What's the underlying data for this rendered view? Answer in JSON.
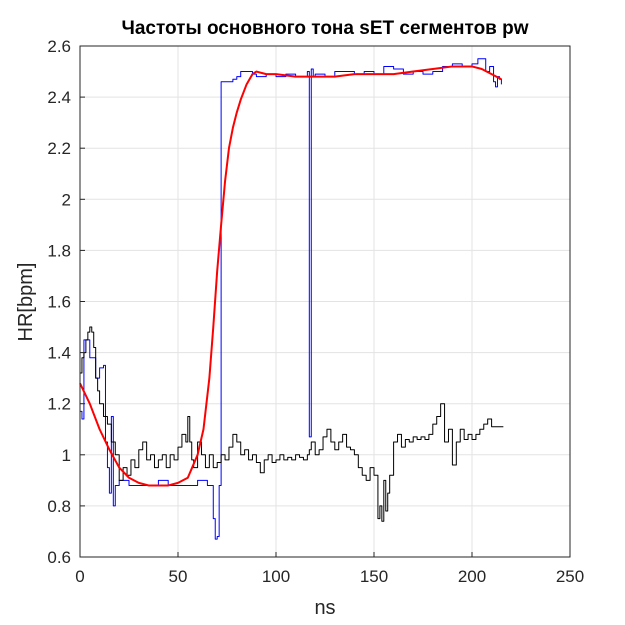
{
  "chart_data": {
    "type": "line",
    "title": "Частоты основного тона sET сегментов pw",
    "xlabel": "ns",
    "ylabel": "HR[bpm]",
    "xlim": [
      0,
      250
    ],
    "ylim": [
      0.6,
      2.6
    ],
    "xticks": [
      "0",
      "50",
      "100",
      "150",
      "200",
      "250"
    ],
    "yticks": [
      "0.6",
      "0.8",
      "1",
      "1.2",
      "1.4",
      "1.6",
      "1.8",
      "2",
      "2.2",
      "2.4",
      "2.6"
    ],
    "grid": true,
    "legend": "none",
    "series": [
      {
        "color": "#0000ff",
        "style": "step",
        "x": [
          0,
          1,
          2,
          5,
          8,
          10,
          12,
          13,
          14,
          15,
          16,
          17,
          18,
          20,
          25,
          30,
          35,
          40,
          45,
          50,
          55,
          60,
          62,
          65,
          67,
          68,
          69,
          70,
          71,
          72,
          73,
          78,
          80,
          82,
          85,
          88,
          90,
          95,
          100,
          105,
          110,
          115,
          116,
          117,
          118,
          119,
          120,
          125,
          130,
          135,
          140,
          145,
          150,
          155,
          160,
          165,
          170,
          175,
          180,
          185,
          190,
          195,
          200,
          203,
          205,
          207,
          209,
          211,
          212,
          213,
          214,
          215
        ],
        "y": [
          1.17,
          1.14,
          1.45,
          1.38,
          1.3,
          1.34,
          1.35,
          1.05,
          0.95,
          0.85,
          1.15,
          0.8,
          0.88,
          0.9,
          0.88,
          0.88,
          0.88,
          0.9,
          0.88,
          0.88,
          0.88,
          0.9,
          0.9,
          0.88,
          0.88,
          0.75,
          0.67,
          0.68,
          0.88,
          2.46,
          2.46,
          2.47,
          2.48,
          2.5,
          2.5,
          2.49,
          2.48,
          2.49,
          2.48,
          2.49,
          2.48,
          2.48,
          2.5,
          1.07,
          2.51,
          2.48,
          2.49,
          2.48,
          2.5,
          2.5,
          2.49,
          2.5,
          2.49,
          2.52,
          2.51,
          2.49,
          2.5,
          2.49,
          2.5,
          2.52,
          2.53,
          2.52,
          2.53,
          2.55,
          2.55,
          2.5,
          2.52,
          2.46,
          2.44,
          2.48,
          2.47,
          2.45
        ]
      },
      {
        "color": "#000000",
        "style": "step",
        "x": [
          0,
          1,
          2,
          3,
          4,
          5,
          6,
          7,
          8,
          9,
          10,
          12,
          14,
          16,
          18,
          20,
          22,
          24,
          26,
          28,
          30,
          32,
          34,
          36,
          38,
          40,
          42,
          44,
          46,
          48,
          50,
          52,
          54,
          55,
          56,
          57,
          58,
          60,
          62,
          64,
          66,
          68,
          70,
          72,
          74,
          76,
          78,
          80,
          82,
          84,
          86,
          88,
          90,
          92,
          94,
          96,
          98,
          100,
          102,
          104,
          106,
          108,
          110,
          112,
          114,
          116,
          117,
          118,
          120,
          122,
          124,
          126,
          128,
          130,
          132,
          134,
          136,
          138,
          140,
          142,
          144,
          146,
          148,
          150,
          152,
          153,
          154,
          155,
          156,
          157,
          158,
          160,
          162,
          164,
          166,
          168,
          170,
          172,
          174,
          176,
          178,
          180,
          182,
          184,
          186,
          188,
          190,
          192,
          194,
          196,
          198,
          200,
          202,
          204,
          206,
          208,
          210,
          212,
          214,
          216
        ],
        "y": [
          1.32,
          1.38,
          1.4,
          1.45,
          1.48,
          1.5,
          1.48,
          1.42,
          1.3,
          1.25,
          1.2,
          1.15,
          1.12,
          1.05,
          1.0,
          0.9,
          0.95,
          0.92,
          0.98,
          0.95,
          1.02,
          1.05,
          0.98,
          1.0,
          0.95,
          0.98,
          1.0,
          0.95,
          1.0,
          0.98,
          1.03,
          1.08,
          1.05,
          1.15,
          1.05,
          0.98,
          0.95,
          1.05,
          1.0,
          0.95,
          1.0,
          0.95,
          0.97,
          1.0,
          0.98,
          1.03,
          1.08,
          1.05,
          1.0,
          1.02,
          0.98,
          1.0,
          0.97,
          0.93,
          0.98,
          1.0,
          0.97,
          0.98,
          1.0,
          0.98,
          0.99,
          0.98,
          1.0,
          0.99,
          0.98,
          1.0,
          1.02,
          1.05,
          1.0,
          1.02,
          1.07,
          1.1,
          1.05,
          1.02,
          1.05,
          1.08,
          1.03,
          1.02,
          1.0,
          0.95,
          0.92,
          0.9,
          0.95,
          0.92,
          0.75,
          0.8,
          0.74,
          0.9,
          0.78,
          0.85,
          0.92,
          1.05,
          1.08,
          1.03,
          1.06,
          1.05,
          1.07,
          1.06,
          1.07,
          1.06,
          1.08,
          1.12,
          1.15,
          1.2,
          1.05,
          1.1,
          0.96,
          1.05,
          1.1,
          1.06,
          1.08,
          1.06,
          1.08,
          1.1,
          1.12,
          1.14,
          1.11,
          1.11,
          1.11,
          1.11
        ]
      },
      {
        "color": "#ff0000",
        "style": "smooth",
        "x": [
          0,
          5,
          10,
          15,
          20,
          25,
          30,
          35,
          40,
          45,
          50,
          55,
          60,
          63,
          66,
          68,
          70,
          72,
          74,
          76,
          78,
          80,
          82,
          85,
          88,
          90,
          95,
          100,
          110,
          120,
          130,
          140,
          150,
          160,
          170,
          180,
          190,
          200,
          205,
          210,
          215
        ],
        "y": [
          1.28,
          1.2,
          1.1,
          1.02,
          0.95,
          0.91,
          0.89,
          0.88,
          0.88,
          0.88,
          0.89,
          0.91,
          1.0,
          1.1,
          1.3,
          1.5,
          1.72,
          1.9,
          2.07,
          2.2,
          2.28,
          2.34,
          2.39,
          2.45,
          2.49,
          2.5,
          2.49,
          2.49,
          2.48,
          2.48,
          2.48,
          2.49,
          2.49,
          2.49,
          2.5,
          2.51,
          2.52,
          2.52,
          2.51,
          2.49,
          2.47
        ]
      }
    ]
  }
}
